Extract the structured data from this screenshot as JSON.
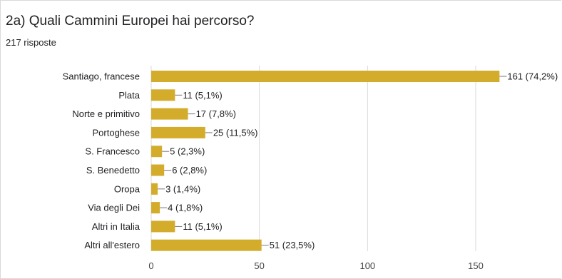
{
  "header": {
    "title": "2a) Quali Cammini Europei hai percorso?",
    "responses": "217 risposte"
  },
  "colors": {
    "bar": "#d4ac2c",
    "grid": "#dadada",
    "leader": "#777777"
  },
  "chart_data": {
    "type": "bar",
    "orientation": "horizontal",
    "title": "2a) Quali Cammini Europei hai percorso?",
    "categories": [
      "Santiago, francese",
      "Plata",
      "Norte e primitivo",
      "Portoghese",
      "S. Francesco",
      "S. Benedetto",
      "Oropa",
      "Via degli Dei",
      "Altri in Italia",
      "Altri all'estero"
    ],
    "values": [
      161,
      11,
      17,
      25,
      5,
      6,
      3,
      4,
      11,
      51
    ],
    "data_labels": [
      "161 (74,2%)",
      "11 (5,1%)",
      "17 (7,8%)",
      "25 (11,5%)",
      "5 (2,3%)",
      "6 (2,8%)",
      "3 (1,4%)",
      "4 (1,8%)",
      "11 (5,1%)",
      "51 (23,5%)"
    ],
    "xticks": [
      0,
      50,
      100,
      150
    ],
    "xlim": [
      0,
      190
    ],
    "grid": true,
    "legend": "none"
  }
}
